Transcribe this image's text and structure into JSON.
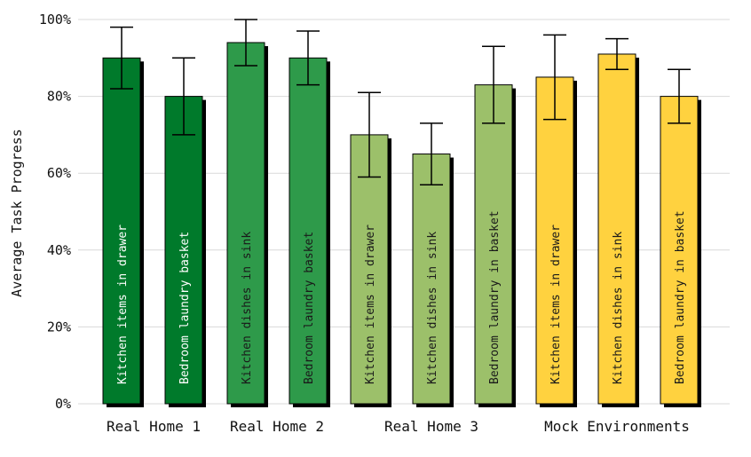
{
  "chart_data": {
    "type": "bar",
    "title": "",
    "xlabel": "",
    "ylabel": "Average Task Progress",
    "ylim": [
      0,
      100
    ],
    "y_ticks": [
      "0%",
      "20%",
      "40%",
      "60%",
      "80%",
      "100%"
    ],
    "grid": "horizontal",
    "groups": [
      {
        "name": "Real Home 1",
        "color": "#007A2B",
        "label_color": "#ffffff",
        "bars": [
          {
            "label": "Kitchen items in drawer",
            "value": 90,
            "err_low": 82,
            "err_high": 98
          },
          {
            "label": "Bedroom laundry basket",
            "value": 80,
            "err_low": 70,
            "err_high": 90
          }
        ]
      },
      {
        "name": "Real Home 2",
        "color": "#2E9A4A",
        "label_color": "#1a1a1a",
        "bars": [
          {
            "label": "Kitchen dishes in sink",
            "value": 94,
            "err_low": 88,
            "err_high": 100
          },
          {
            "label": "Bedroom laundry basket",
            "value": 90,
            "err_low": 83,
            "err_high": 97
          }
        ]
      },
      {
        "name": "Real Home 3",
        "color": "#9CC06A",
        "label_color": "#1a1a1a",
        "bars": [
          {
            "label": "Kitchen items in drawer",
            "value": 70,
            "err_low": 59,
            "err_high": 81
          },
          {
            "label": "Kitchen dishes in sink",
            "value": 65,
            "err_low": 57,
            "err_high": 73
          },
          {
            "label": "Bedroom laundry in basket",
            "value": 83,
            "err_low": 73,
            "err_high": 93
          }
        ]
      },
      {
        "name": "Mock Environments",
        "color": "#FFD23F",
        "label_color": "#1a1a1a",
        "bars": [
          {
            "label": "Kitchen items in drawer",
            "value": 85,
            "err_low": 74,
            "err_high": 96
          },
          {
            "label": "Kitchen dishes in sink",
            "value": 91,
            "err_low": 87,
            "err_high": 95
          },
          {
            "label": "Bedroom laundry in basket",
            "value": 80,
            "err_low": 73,
            "err_high": 87
          }
        ]
      }
    ]
  }
}
